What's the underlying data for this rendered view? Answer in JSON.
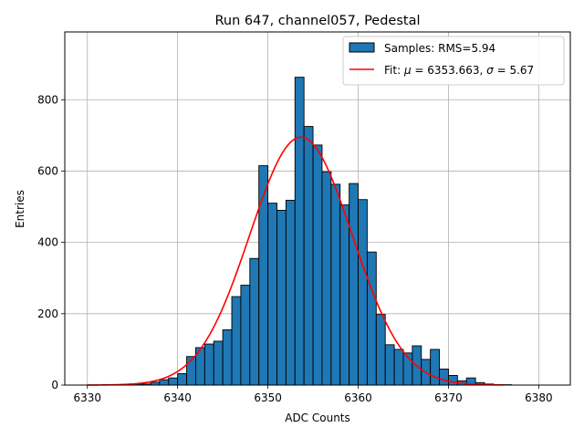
{
  "chart_data": {
    "type": "bar",
    "title": "Run 647, channel057, Pedestal",
    "xlabel": "ADC Counts",
    "ylabel": "Entries",
    "xlim": [
      6327.5,
      6383.5
    ],
    "ylim": [
      0,
      990
    ],
    "xticks": [
      6330,
      6340,
      6350,
      6360,
      6370,
      6380
    ],
    "yticks": [
      0,
      200,
      400,
      600,
      800
    ],
    "grid": true,
    "legend_position": "top-right",
    "histogram": {
      "name": "Samples: RMS=5.94",
      "color": "#1f77b4",
      "bin_width": 1,
      "bin_starts": [
        6330,
        6331,
        6332,
        6333,
        6334,
        6335,
        6336,
        6337,
        6338,
        6339,
        6340,
        6341,
        6342,
        6343,
        6344,
        6345,
        6346,
        6347,
        6348,
        6349,
        6350,
        6351,
        6352,
        6353,
        6354,
        6355,
        6356,
        6357,
        6358,
        6359,
        6360,
        6361,
        6362,
        6363,
        6364,
        6365,
        6366,
        6367,
        6368,
        6369,
        6370,
        6371,
        6372,
        6373,
        6374,
        6375,
        6376,
        6377,
        6378,
        6379,
        6380
      ],
      "counts": [
        0,
        0,
        0,
        1,
        1,
        3,
        3,
        8,
        15,
        20,
        32,
        80,
        105,
        115,
        123,
        155,
        248,
        280,
        355,
        615,
        510,
        490,
        518,
        863,
        725,
        673,
        598,
        563,
        505,
        565,
        520,
        373,
        198,
        113,
        100,
        90,
        110,
        72,
        100,
        45,
        27,
        12,
        20,
        7,
        3,
        1,
        1,
        0,
        0,
        0,
        0
      ]
    },
    "fit": {
      "name": "Fit: μ = 6353.663, σ = 5.67",
      "label_prefix": "Fit: ",
      "mu_symbol": "μ",
      "mu_text": " = 6353.663, ",
      "sigma_symbol": "σ",
      "sigma_text": " = 5.67",
      "color": "#ff0000",
      "mu": 6353.663,
      "sigma": 5.67,
      "amplitude": 695,
      "x_range": [
        6330,
        6376
      ]
    },
    "legend": [
      "Samples: RMS=5.94",
      "Fit: μ = 6353.663, σ = 5.67"
    ]
  }
}
